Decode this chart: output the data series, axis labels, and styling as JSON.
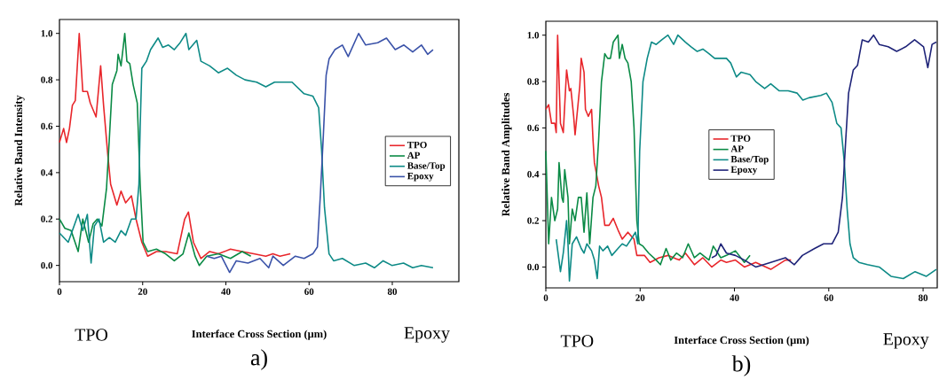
{
  "chart_data": [
    {
      "type": "line",
      "xlabel": "Interface Cross Section (μm)",
      "ylabel": "Relative Band Intensity",
      "annotations": [
        "TPO",
        "Epoxy",
        "a)"
      ],
      "xlim": [
        0,
        96
      ],
      "ylim": [
        -0.07,
        1.06
      ],
      "xticks": [
        0,
        20,
        40,
        60,
        80
      ],
      "yticks": [
        {
          "value": 0,
          "label": "0.0"
        },
        {
          "value": 0.2,
          "label": "0.2"
        },
        {
          "value": 0.4,
          "label": "0.4"
        },
        {
          "value": 0.6,
          "label": "0.6"
        },
        {
          "value": 0.8,
          "label": "0.8"
        },
        {
          "value": 1,
          "label": "1.0"
        }
      ],
      "legend": "right",
      "marker": "none",
      "line_style": "solid",
      "series": [
        {
          "name": "TPO",
          "color": "#e8262b",
          "x": [
            0,
            1.0,
            1.7,
            2.4,
            3.1,
            3.8,
            4.75,
            5.6,
            6.7,
            7.4,
            8.8,
            9.9,
            10.6,
            11.6,
            12.3,
            13.8,
            14.8,
            15.9,
            17.3,
            18.4,
            19.8,
            21.2,
            23.3,
            25.5,
            28.3,
            30.1,
            31,
            32.2,
            34,
            36.1,
            38.2,
            41.1,
            43.9,
            46.7,
            49.6,
            51.3,
            53,
            55.5
          ],
          "values": [
            0.53,
            0.59,
            0.53,
            0.59,
            0.69,
            0.71,
            1.0,
            0.75,
            0.75,
            0.7,
            0.64,
            0.86,
            0.69,
            0.48,
            0.35,
            0.26,
            0.32,
            0.27,
            0.3,
            0.2,
            0.1,
            0.04,
            0.06,
            0.06,
            0.05,
            0.2,
            0.23,
            0.1,
            0.03,
            0.06,
            0.05,
            0.07,
            0.06,
            0.05,
            0.04,
            0.05,
            0.04,
            0.05
          ]
        },
        {
          "name": "AP",
          "color": "#0a8a45",
          "x": [
            0,
            1.3,
            2.8,
            4.5,
            5.6,
            7,
            8.1,
            9.1,
            10.2,
            11.3,
            12,
            12.7,
            13.8,
            14.1,
            14.8,
            15.7,
            16.2,
            16.9,
            17.7,
            18.7,
            19.4,
            20.1,
            21.2,
            23.3,
            25.5,
            27.6,
            29.7,
            31.1,
            32.6,
            33.6,
            35.4,
            38.2,
            41.1,
            43.9,
            46
          ],
          "values": [
            0.2,
            0.16,
            0.15,
            0.06,
            0.2,
            0.1,
            0.18,
            0.2,
            0.17,
            0.33,
            0.55,
            0.78,
            0.84,
            0.91,
            0.86,
            1.0,
            0.88,
            0.87,
            0.78,
            0.7,
            0.35,
            0.1,
            0.06,
            0.07,
            0.05,
            0.02,
            0.05,
            0.14,
            0.04,
            0.0,
            0.04,
            0.05,
            0.03,
            0.06,
            0.04
          ]
        },
        {
          "name": "Base/Top",
          "color": "#0d8a86",
          "x": [
            0,
            2.1,
            4.5,
            5.6,
            6.7,
            7.6,
            8.4,
            9.5,
            10.6,
            12,
            13.4,
            14.8,
            15.9,
            17.3,
            18.4,
            19.1,
            19.4,
            19.8,
            20.9,
            21.9,
            23.7,
            24.8,
            26.2,
            27.6,
            29,
            30.4,
            31.1,
            33,
            34,
            36.1,
            38.2,
            40.4,
            42.5,
            44.6,
            47.4,
            49.6,
            51.7,
            55.9,
            58.8,
            60.9,
            62.3,
            63.0,
            63.7,
            64.8,
            65.9,
            68,
            70.8,
            73.6,
            75.7,
            77.8,
            79.9,
            82.7,
            84.9,
            87,
            89.8
          ],
          "values": [
            0.14,
            0.1,
            0.22,
            0.15,
            0.22,
            0.01,
            0.17,
            0.2,
            0.1,
            0.12,
            0.1,
            0.15,
            0.13,
            0.2,
            0.2,
            0.35,
            0.6,
            0.85,
            0.88,
            0.93,
            0.98,
            0.94,
            0.95,
            0.93,
            0.96,
            1.0,
            0.93,
            0.97,
            0.88,
            0.86,
            0.83,
            0.85,
            0.82,
            0.8,
            0.79,
            0.77,
            0.79,
            0.79,
            0.74,
            0.73,
            0.68,
            0.5,
            0.25,
            0.05,
            0.02,
            0.03,
            0.0,
            0.01,
            -0.01,
            0.02,
            0.0,
            0.01,
            -0.01,
            0.0,
            -0.01
          ]
        },
        {
          "name": "Epoxy",
          "color": "#3a52a8",
          "x": [
            35.4,
            37.2,
            38.9,
            40.9,
            42.5,
            45.3,
            48.2,
            50.3,
            51.3,
            53.8,
            56.7,
            58.8,
            60.9,
            62,
            62.7,
            63.4,
            64.1,
            64.8,
            66.2,
            68,
            69.4,
            71.9,
            73.6,
            76.5,
            78.6,
            80.7,
            82.8,
            84.9,
            87,
            88.5,
            89.8
          ],
          "values": [
            0.04,
            0.03,
            0.04,
            -0.03,
            0.02,
            0.01,
            0.03,
            -0.01,
            0.04,
            0.0,
            0.04,
            0.03,
            0.05,
            0.08,
            0.3,
            0.55,
            0.82,
            0.89,
            0.93,
            0.95,
            0.9,
            1.0,
            0.95,
            0.96,
            0.98,
            0.93,
            0.95,
            0.92,
            0.95,
            0.91,
            0.93
          ]
        }
      ]
    },
    {
      "type": "line",
      "xlabel": "Interface Cross Section (μm)",
      "ylabel": "Relative Band Amplitudes",
      "annotations": [
        "TPO",
        "Epoxy",
        "b)"
      ],
      "xlim": [
        0,
        83
      ],
      "ylim": [
        -0.09,
        1.06
      ],
      "xticks": [
        0,
        20,
        40,
        60,
        80
      ],
      "yticks": [
        {
          "value": 0,
          "label": "0.0"
        },
        {
          "value": 0.2,
          "label": "0.2"
        },
        {
          "value": 0.4,
          "label": "0.4"
        },
        {
          "value": 0.6,
          "label": "0.6"
        },
        {
          "value": 0.8,
          "label": "0.8"
        },
        {
          "value": 1,
          "label": "1.0"
        }
      ],
      "legend": "center",
      "marker": "none",
      "line_style": "solid",
      "series": [
        {
          "name": "TPO",
          "color": "#e8262b",
          "x": [
            0,
            0.6,
            1.2,
            1.9,
            2.2,
            2.5,
            3.1,
            3.7,
            4.4,
            5.0,
            5.3,
            5.9,
            6.2,
            7.2,
            7.5,
            8.1,
            8.4,
            9.0,
            9.7,
            10.0,
            10.3,
            11.2,
            11.8,
            12.5,
            13.4,
            14.3,
            15.3,
            16.2,
            17.4,
            18.7,
            19.3,
            20.9,
            22.1,
            24.0,
            25.9,
            28.3,
            29.6,
            31.5,
            33.3,
            35.2,
            37.1,
            38.3,
            40.2,
            42.1,
            44.5,
            47.7,
            50.8,
            52.0
          ],
          "values": [
            0.68,
            0.7,
            0.62,
            0.62,
            0.58,
            1.0,
            0.62,
            0.58,
            0.85,
            0.76,
            0.77,
            0.65,
            0.57,
            0.78,
            0.9,
            0.84,
            0.68,
            0.65,
            0.68,
            0.55,
            0.45,
            0.35,
            0.3,
            0.18,
            0.18,
            0.21,
            0.16,
            0.12,
            0.15,
            0.12,
            0.05,
            0.05,
            0.02,
            0.04,
            0.05,
            0.03,
            0.06,
            0.01,
            0.04,
            0.0,
            0.03,
            0.02,
            0.03,
            0.0,
            0.02,
            -0.01,
            0.03,
            0.03
          ]
        },
        {
          "name": "AP",
          "color": "#0a8a45",
          "x": [
            0,
            0.3,
            0.6,
            1.2,
            1.9,
            2.5,
            2.8,
            3.4,
            3.7,
            4.0,
            4.7,
            5.0,
            5.6,
            6.2,
            6.9,
            7.5,
            8.1,
            8.7,
            9.3,
            10.0,
            10.6,
            11.2,
            11.8,
            12.5,
            13.1,
            13.7,
            14.3,
            15.3,
            15.6,
            16.2,
            16.8,
            17.4,
            18.1,
            18.7,
            19.3,
            19.8,
            20.6,
            21.8,
            23.4,
            24.3,
            25.5,
            26.5,
            27.7,
            29.0,
            30.2,
            31.5,
            32.7,
            34.6,
            35.5,
            37.1,
            38.3,
            40.2,
            42.1,
            43.3
          ],
          "values": [
            0.5,
            0.3,
            0.1,
            0.3,
            0.2,
            0.25,
            0.45,
            0.3,
            0.28,
            0.42,
            0.3,
            0.1,
            0.25,
            0.2,
            0.3,
            0.3,
            0.15,
            0.32,
            0.1,
            0.3,
            0.35,
            0.55,
            0.8,
            0.92,
            0.9,
            0.9,
            0.97,
            1.0,
            0.9,
            0.96,
            0.9,
            0.88,
            0.8,
            0.6,
            0.2,
            0.1,
            0.09,
            0.06,
            0.03,
            0.01,
            0.08,
            0.03,
            0.06,
            0.04,
            0.1,
            0.04,
            0.06,
            0.03,
            0.09,
            0.04,
            0.05,
            0.07,
            0.02,
            0.05
          ]
        },
        {
          "name": "Base/Top",
          "color": "#0d8a86",
          "x": [
            2.2,
            3.1,
            3.7,
            4.4,
            4.7,
            5.0,
            5.6,
            6.5,
            7.5,
            8.1,
            8.7,
            9.7,
            10.3,
            10.9,
            11.4,
            12.1,
            13.1,
            14.0,
            15.3,
            16.2,
            17.1,
            18.1,
            19.0,
            19.5,
            19.9,
            20.6,
            21.5,
            22.4,
            23.4,
            24.6,
            25.9,
            27.1,
            28.0,
            29.6,
            30.8,
            32.1,
            33.3,
            34.6,
            35.8,
            37.1,
            38.3,
            39.2,
            40.4,
            41.4,
            43.3,
            44.5,
            46.4,
            47.7,
            49.5,
            51.4,
            53.3,
            54.5,
            55.8,
            58.3,
            59.5,
            60.7,
            61.7,
            62.6,
            63.3,
            63.9,
            64.5,
            65.2,
            66.4,
            68.2,
            70.7,
            73.2,
            75.8,
            78.3,
            80.7,
            82.8
          ],
          "values": [
            0.12,
            -0.02,
            0.06,
            0.2,
            0.1,
            -0.06,
            0.1,
            0.13,
            0.08,
            0.06,
            0.1,
            0.07,
            0.03,
            -0.05,
            0.09,
            0.07,
            0.09,
            0.05,
            0.08,
            0.1,
            0.09,
            0.12,
            0.15,
            0.1,
            0.5,
            0.8,
            0.9,
            0.97,
            0.96,
            0.98,
            1.0,
            0.96,
            1.0,
            0.97,
            0.95,
            0.93,
            0.94,
            0.92,
            0.9,
            0.9,
            0.9,
            0.88,
            0.82,
            0.84,
            0.83,
            0.8,
            0.77,
            0.79,
            0.76,
            0.76,
            0.75,
            0.72,
            0.73,
            0.74,
            0.75,
            0.71,
            0.62,
            0.6,
            0.45,
            0.25,
            0.1,
            0.04,
            0.02,
            0.01,
            0.0,
            -0.04,
            -0.05,
            -0.02,
            -0.04,
            -0.01
          ]
        },
        {
          "name": "Epoxy",
          "color": "#1e2378",
          "x": [
            35.2,
            36.1,
            37.1,
            38.3,
            40.2,
            42.1,
            44.5,
            47.7,
            50.8,
            52.7,
            54.4,
            57.0,
            58.9,
            60.7,
            62.0,
            62.9,
            63.6,
            64.2,
            65.2,
            66.1,
            67.1,
            68.4,
            69.5,
            70.7,
            72.6,
            74.4,
            76.3,
            78.2,
            80.1,
            81.0,
            81.9,
            82.8
          ],
          "values": [
            0.04,
            0.05,
            0.1,
            0.06,
            0.05,
            0.03,
            0.0,
            0.02,
            0.04,
            0.01,
            0.05,
            0.08,
            0.1,
            0.1,
            0.15,
            0.3,
            0.55,
            0.75,
            0.85,
            0.87,
            0.98,
            0.97,
            1.0,
            0.96,
            0.95,
            0.93,
            0.95,
            0.98,
            0.95,
            0.86,
            0.96,
            0.97
          ]
        }
      ]
    }
  ]
}
